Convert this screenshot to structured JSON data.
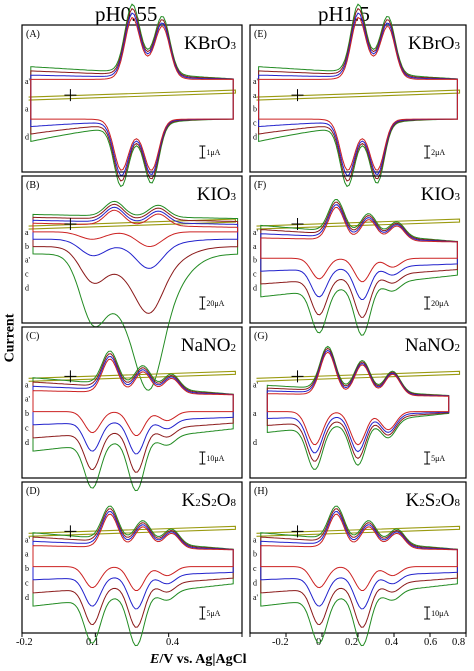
{
  "page": {
    "column_titles": [
      "pH0.55",
      "pH1.5"
    ],
    "ylabel": "Current",
    "xlabel_italic": "E",
    "xlabel_rest": "/V vs. Ag|AgCl"
  },
  "colors": {
    "a": "#cc2222",
    "b": "#2222cc",
    "c": "#8b1a1a",
    "d": "#228b22",
    "blank": "#9a9a10"
  },
  "chart_data": [
    {
      "type": "line",
      "panel": "(A)",
      "compound": "KBrO3",
      "compound_base": "KBrO",
      "compound_sub": "3",
      "scale_label": "1μA",
      "column": 0,
      "row": 0,
      "pattern": "A",
      "curve_labels": [
        "a'",
        "a",
        "d"
      ],
      "xlim": [
        -0.2,
        0.7
      ],
      "xticks": [
        -0.2,
        0.1,
        0.4
      ]
    },
    {
      "type": "line",
      "panel": "(B)",
      "compound": "KIO3",
      "compound_base": "KIO",
      "compound_sub": "3",
      "scale_label": "20μA",
      "column": 0,
      "row": 1,
      "pattern": "B",
      "curve_labels": [
        "a",
        "b",
        "a'",
        "c",
        "d"
      ],
      "xlim": [
        -0.2,
        0.7
      ]
    },
    {
      "type": "line",
      "panel": "(C)",
      "compound": "NaNO2",
      "compound_base": "NaNO",
      "compound_sub": "2",
      "scale_label": "10μA",
      "column": 0,
      "row": 2,
      "pattern": "C",
      "curve_labels": [
        "a",
        "a'",
        "b",
        "c",
        "d"
      ],
      "xlim": [
        -0.2,
        0.7
      ]
    },
    {
      "type": "line",
      "panel": "(D)",
      "compound": "K2S2O8",
      "compound_parts": [
        "K",
        "2",
        "S",
        "2",
        "O",
        "8"
      ],
      "scale_label": "5μA",
      "column": 0,
      "row": 3,
      "pattern": "C",
      "curve_labels": [
        "a'",
        "a",
        "b",
        "c",
        "d"
      ],
      "xlim": [
        -0.2,
        0.7
      ]
    },
    {
      "type": "line",
      "panel": "(E)",
      "compound": "KBrO3",
      "compound_base": "KBrO",
      "compound_sub": "3",
      "scale_label": "2μA",
      "column": 1,
      "row": 0,
      "pattern": "A",
      "curve_labels": [
        "a'",
        "a",
        "b",
        "c",
        "d"
      ],
      "xlim": [
        -0.4,
        0.8
      ]
    },
    {
      "type": "line",
      "panel": "(F)",
      "compound": "KIO3",
      "compound_base": "KIO",
      "compound_sub": "3",
      "scale_label": "20μA",
      "column": 1,
      "row": 1,
      "pattern": "C",
      "curve_labels": [
        "a'",
        "a",
        "b",
        "c",
        "d"
      ],
      "xlim": [
        -0.4,
        0.8
      ]
    },
    {
      "type": "line",
      "panel": "(G)",
      "compound": "NaNO2",
      "compound_base": "NaNO",
      "compound_sub": "2",
      "scale_label": "5μA",
      "column": 1,
      "row": 2,
      "pattern": "G",
      "curve_labels": [
        "a'",
        "a",
        "d"
      ],
      "xlim": [
        -0.4,
        0.8
      ]
    },
    {
      "type": "line",
      "panel": "(H)",
      "compound": "K2S2O8",
      "compound_parts": [
        "K",
        "2",
        "S",
        "2",
        "O",
        "8"
      ],
      "scale_label": "10μA",
      "column": 1,
      "row": 3,
      "pattern": "C",
      "curve_labels": [
        "a",
        "b",
        "c",
        "d",
        "a'"
      ],
      "xlim": [
        -0.4,
        0.8
      ],
      "xticks": [
        -0.2,
        0,
        0.2,
        0.4,
        0.6,
        0.8
      ]
    }
  ]
}
